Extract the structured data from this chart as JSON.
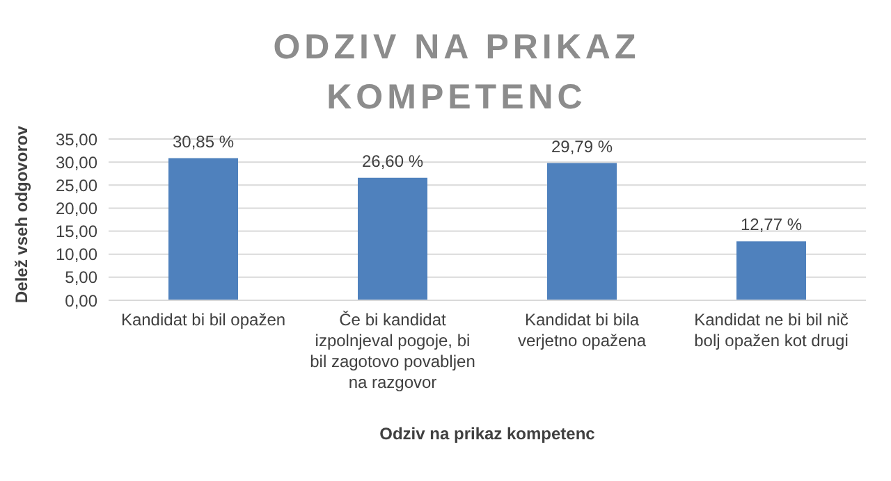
{
  "chart_data": {
    "type": "bar",
    "title": "ODZIV NA PRIKAZ KOMPETENC",
    "xlabel": "Odziv na prikaz kompetenc",
    "ylabel": "Delež vseh odgovorov",
    "categories": [
      "Kandidat bi bil opažen",
      "Če bi kandidat izpolnjeval pogoje, bi bil zagotovo povabljen na razgovor",
      "Kandidat bi bila verjetno opažena",
      "Kandidat ne bi bil nič bolj opažen kot drugi"
    ],
    "values": [
      30.85,
      26.6,
      29.79,
      12.77
    ],
    "value_labels": [
      "30,85 %",
      "26,60 %",
      "29,79 %",
      "12,77 %"
    ],
    "color": "#4f81bd",
    "ylim": [
      0,
      35
    ],
    "yticks": [
      {
        "value": 0,
        "label": "0,00"
      },
      {
        "value": 5,
        "label": "5,00"
      },
      {
        "value": 10,
        "label": "10,00"
      },
      {
        "value": 15,
        "label": "15,00"
      },
      {
        "value": 20,
        "label": "20,00"
      },
      {
        "value": 25,
        "label": "25,00"
      },
      {
        "value": 30,
        "label": "30,00"
      },
      {
        "value": 35,
        "label": "35,00"
      }
    ],
    "grid": "y",
    "legend": false
  }
}
